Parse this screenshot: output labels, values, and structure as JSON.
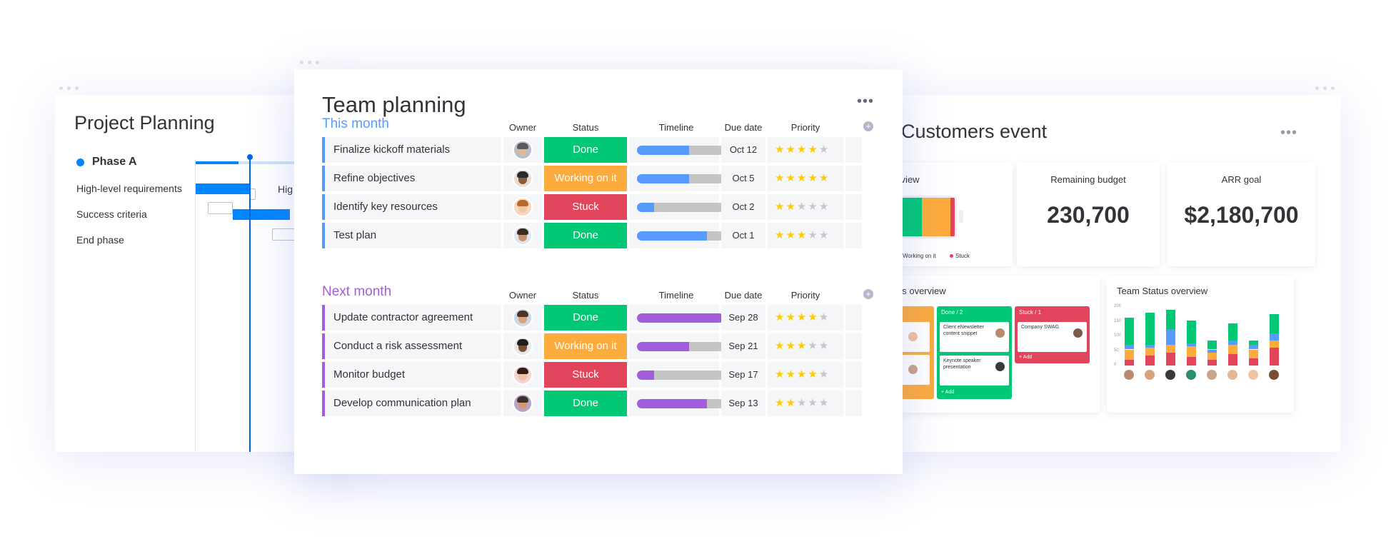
{
  "project_planning": {
    "title": "Project Planning",
    "phase": "Phase A",
    "tasks": [
      "High-level requirements",
      "Success criteria",
      "End phase"
    ],
    "gantt_label": "Hig"
  },
  "team_planning": {
    "title": "Team planning",
    "more_icon": "more-dots-icon",
    "columns": {
      "owner": "Owner",
      "status": "Status",
      "timeline": "Timeline",
      "due": "Due date",
      "priority": "Priority"
    },
    "groups": [
      {
        "title": "This month",
        "color": "#579bfc",
        "rows": [
          {
            "name": "Finalize kickoff materials",
            "status": "Done",
            "status_color": "#00c875",
            "timeline": 0.6,
            "due": "Oct 12",
            "priority": 4
          },
          {
            "name": "Refine objectives",
            "status": "Working on it",
            "status_color": "#fdab3d",
            "timeline": 0.6,
            "due": "Oct 5",
            "priority": 5
          },
          {
            "name": "Identify key resources",
            "status": "Stuck",
            "status_color": "#e2445c",
            "timeline": 0.2,
            "due": "Oct 2",
            "priority": 2
          },
          {
            "name": "Test plan",
            "status": "Done",
            "status_color": "#00c875",
            "timeline": 0.8,
            "due": "Oct 1",
            "priority": 3
          }
        ]
      },
      {
        "title": "Next month",
        "color": "#a25ddc",
        "rows": [
          {
            "name": "Update contractor agreement",
            "status": "Done",
            "status_color": "#00c875",
            "timeline": 1.0,
            "due": "Sep 28",
            "priority": 4
          },
          {
            "name": "Conduct a risk assessment",
            "status": "Working on it",
            "status_color": "#fdab3d",
            "timeline": 0.6,
            "due": "Sep 21",
            "priority": 3
          },
          {
            "name": "Monitor budget",
            "status": "Stuck",
            "status_color": "#e2445c",
            "timeline": 0.2,
            "due": "Sep 17",
            "priority": 4
          },
          {
            "name": "Develop communication plan",
            "status": "Done",
            "status_color": "#00c875",
            "timeline": 0.8,
            "due": "Sep 13",
            "priority": 2
          }
        ]
      }
    ]
  },
  "customers_event": {
    "title": "Customers event",
    "overview_title": "erview",
    "legend": [
      {
        "label": "Working on it",
        "color": "#fdab3d"
      },
      {
        "label": "Stuck",
        "color": "#e2445c"
      }
    ],
    "remaining_budget": {
      "title": "Remaining budget",
      "value": "230,700"
    },
    "arr_goal": {
      "title": "ARR goal",
      "value": "$2,180,700"
    },
    "status_overview_title": "us overview",
    "kanban": [
      {
        "head": "Done / 2",
        "items": [
          "Client eNewsletter content snippet",
          "Keynote speaker presentation"
        ],
        "add": "+ Add"
      },
      {
        "head": "Stuck / 1",
        "items": [
          "Company SWAG"
        ],
        "add": "+ Add"
      }
    ],
    "team_status_title": "Team Status overview",
    "chart_ticks": [
      "200",
      "150",
      "100",
      "50",
      "0"
    ],
    "chart_data": {
      "type": "bar",
      "stacked": true,
      "categories": [
        "1",
        "2",
        "3",
        "4",
        "5",
        "6",
        "7",
        "8"
      ],
      "series": [
        {
          "color": "#e2445c",
          "values": [
            20,
            35,
            45,
            30,
            20,
            40,
            25,
            60
          ]
        },
        {
          "color": "#fdab3d",
          "values": [
            35,
            25,
            25,
            35,
            25,
            30,
            30,
            25
          ]
        },
        {
          "color": "#579bfc",
          "values": [
            15,
            10,
            55,
            10,
            10,
            15,
            15,
            25
          ]
        },
        {
          "color": "#00c875",
          "values": [
            95,
            110,
            65,
            80,
            30,
            60,
            15,
            65
          ]
        }
      ],
      "ylim": [
        0,
        220
      ]
    }
  }
}
